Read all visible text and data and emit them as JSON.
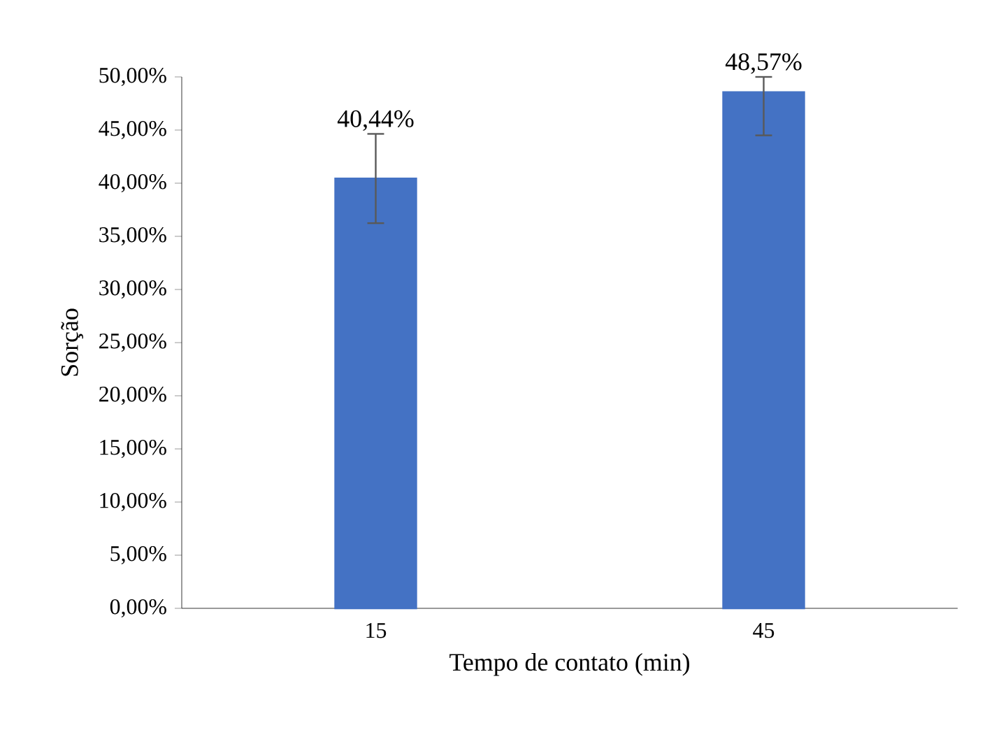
{
  "chart_data": {
    "type": "bar",
    "xlabel": "Tempo de contato (min)",
    "ylabel": "Sorção",
    "categories": [
      "15",
      "45"
    ],
    "values": [
      40.44,
      48.57
    ],
    "errors": [
      4.2,
      [
        44.5,
        50
      ]
    ],
    "value_labels": [
      "40,44%",
      "48,57%"
    ],
    "color": "#4472c4",
    "ylim": [
      0,
      50
    ],
    "yticks": [
      {
        "value": 0,
        "label": "0,00%"
      },
      {
        "value": 5,
        "label": "5,00%"
      },
      {
        "value": 10,
        "label": "10,00%"
      },
      {
        "value": 15,
        "label": "15,00%"
      },
      {
        "value": 20,
        "label": "20,00%"
      },
      {
        "value": 25,
        "label": "25,00%"
      },
      {
        "value": 30,
        "label": "30,00%"
      },
      {
        "value": 35,
        "label": "35,00%"
      },
      {
        "value": 40,
        "label": "40,00%"
      },
      {
        "value": 45,
        "label": "45,00%"
      },
      {
        "value": 50,
        "label": "50,00%"
      }
    ]
  }
}
